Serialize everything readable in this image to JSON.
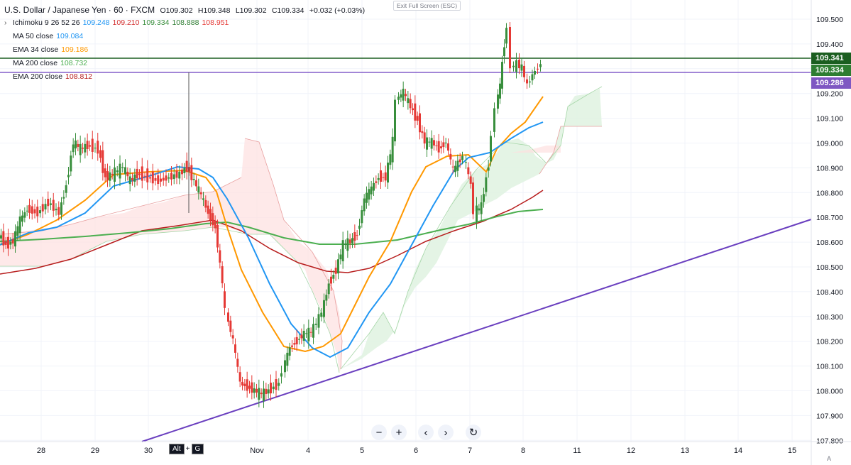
{
  "header": {
    "symbol": "U.S. Dollar / Japanese Yen · 60 · FXCM",
    "ohlc": {
      "open": "O109.302",
      "high": "H109.348",
      "low": "L109.302",
      "close": "C109.334",
      "change": "+0.032 (+0.03%)"
    }
  },
  "indicators": [
    {
      "name": "Ichimoku 9 26 52 26",
      "values": [
        "109.248",
        "109.210",
        "109.334",
        "108.888",
        "108.951"
      ],
      "colors": [
        "#2196f3",
        "#d32f2f",
        "#388e3c",
        "#2e7d32",
        "#e53935"
      ]
    },
    {
      "name": "MA 50 close",
      "values": [
        "109.084"
      ],
      "colors": [
        "#2196f3"
      ]
    },
    {
      "name": "EMA 34 close",
      "values": [
        "109.186"
      ],
      "colors": [
        "#ff9800"
      ]
    },
    {
      "name": "MA 200 close",
      "values": [
        "108.732"
      ],
      "colors": [
        "#4caf50"
      ]
    },
    {
      "name": "EMA 200 close",
      "values": [
        "108.812"
      ],
      "colors": [
        "#b71c1c"
      ]
    }
  ],
  "exit_fullscreen": "Exit Full Screen (ESC)",
  "price_axis": {
    "ticks": [
      "109.500",
      "109.400",
      "109.300",
      "109.200",
      "109.100",
      "109.000",
      "108.900",
      "108.800",
      "108.700",
      "108.600",
      "108.500",
      "108.400",
      "108.300",
      "108.200",
      "108.100",
      "108.000",
      "107.900",
      "107.800"
    ],
    "labels": [
      {
        "text": "109.341",
        "color": "#1b5e20"
      },
      {
        "text": "109.334",
        "color": "#2e7d32"
      },
      {
        "text": "109.286",
        "color": "#7e57c2"
      }
    ]
  },
  "time_axis": {
    "ticks": [
      "28",
      "29",
      "30",
      "Nov",
      "4",
      "5",
      "6",
      "7",
      "8",
      "11",
      "12",
      "13",
      "14",
      "15"
    ]
  },
  "nav_buttons": [
    "−",
    "+",
    "‹",
    "›",
    "↻"
  ],
  "hotkey": {
    "key1": "Alt",
    "plus": "+",
    "key2": "G"
  },
  "auto_label": "A",
  "colors": {
    "bull": "#26a69a",
    "bull_candle": "#388e3c",
    "bear_candle": "#e53935",
    "ma50": "#2196f3",
    "ema34": "#ff9800",
    "ma200": "#4caf50",
    "ema200": "#b71c1c",
    "trendline": "#6a3fbf",
    "hline_green": "#1b5e20",
    "hline_purple": "#6a3fbf"
  },
  "chart_data": {
    "type": "candlestick",
    "x": [
      "28",
      "29",
      "30",
      "Nov",
      "4",
      "5",
      "6",
      "7",
      "8"
    ],
    "close_approx": [
      108.62,
      109.02,
      108.86,
      108.0,
      108.28,
      108.62,
      109.2,
      108.7,
      109.33
    ],
    "ylim": [
      107.8,
      109.55
    ],
    "horizontal_lines": [
      109.341,
      109.286
    ],
    "trendline": {
      "from": [
        "30",
        107.8
      ],
      "to": [
        "15",
        108.69
      ]
    }
  }
}
